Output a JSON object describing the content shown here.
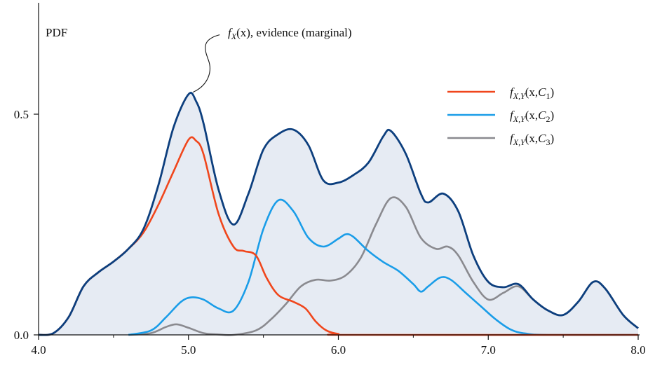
{
  "chart_data": {
    "type": "line",
    "ylabel": "PDF",
    "xlim": [
      4.0,
      8.0
    ],
    "ylim": [
      0.0,
      0.7
    ],
    "x_ticks": [
      {
        "value": 4.0,
        "label": "4.0"
      },
      {
        "value": 5.0,
        "label": "5.0"
      },
      {
        "value": 6.0,
        "label": "6.0"
      },
      {
        "value": 7.0,
        "label": "7.0"
      },
      {
        "value": 8.0,
        "label": "8.0"
      }
    ],
    "y_ticks": [
      {
        "value": 0.0,
        "label": "0.0"
      },
      {
        "value": 0.5,
        "label": "0.5"
      }
    ],
    "annotation": {
      "func": "f",
      "sub": "X",
      "args": "(x)",
      "text": ", evidence (marginal)",
      "point_x": 5.03
    },
    "legend": {
      "position": "top-right",
      "entries": [
        {
          "func": "f",
          "sub": "X,Y",
          "open": "(x,",
          "var": "C",
          "index": "1",
          "close": ")",
          "color": "#f0461c"
        },
        {
          "func": "f",
          "sub": "X,Y",
          "open": "(x,",
          "var": "C",
          "index": "2",
          "close": ")",
          "color": "#1a9de8"
        },
        {
          "func": "f",
          "sub": "X,Y",
          "open": "(x,",
          "var": "C",
          "index": "3",
          "close": ")",
          "color": "#8a8a8f"
        }
      ]
    },
    "series": [
      {
        "color": "#f0461c",
        "points": [
          [
            4.0,
            0.0
          ],
          [
            4.1,
            0.004
          ],
          [
            4.2,
            0.04
          ],
          [
            4.3,
            0.11
          ],
          [
            4.4,
            0.142
          ],
          [
            4.5,
            0.166
          ],
          [
            4.6,
            0.195
          ],
          [
            4.7,
            0.232
          ],
          [
            4.8,
            0.295
          ],
          [
            4.9,
            0.37
          ],
          [
            5.0,
            0.442
          ],
          [
            5.05,
            0.44
          ],
          [
            5.1,
            0.41
          ],
          [
            5.2,
            0.275
          ],
          [
            5.3,
            0.2
          ],
          [
            5.37,
            0.19
          ],
          [
            5.45,
            0.18
          ],
          [
            5.52,
            0.13
          ],
          [
            5.6,
            0.09
          ],
          [
            5.7,
            0.075
          ],
          [
            5.78,
            0.06
          ],
          [
            5.85,
            0.03
          ],
          [
            5.92,
            0.01
          ],
          [
            6.0,
            0.002
          ],
          [
            6.1,
            0.0
          ],
          [
            8.0,
            0.0
          ]
        ]
      },
      {
        "color": "#1a9de8",
        "points": [
          [
            4.6,
            0.0
          ],
          [
            4.75,
            0.01
          ],
          [
            4.85,
            0.04
          ],
          [
            4.95,
            0.075
          ],
          [
            5.02,
            0.085
          ],
          [
            5.1,
            0.08
          ],
          [
            5.2,
            0.06
          ],
          [
            5.3,
            0.055
          ],
          [
            5.4,
            0.12
          ],
          [
            5.5,
            0.24
          ],
          [
            5.6,
            0.305
          ],
          [
            5.7,
            0.28
          ],
          [
            5.8,
            0.22
          ],
          [
            5.9,
            0.2
          ],
          [
            6.0,
            0.218
          ],
          [
            6.05,
            0.228
          ],
          [
            6.1,
            0.222
          ],
          [
            6.2,
            0.19
          ],
          [
            6.3,
            0.165
          ],
          [
            6.4,
            0.145
          ],
          [
            6.5,
            0.115
          ],
          [
            6.55,
            0.098
          ],
          [
            6.6,
            0.11
          ],
          [
            6.68,
            0.13
          ],
          [
            6.75,
            0.125
          ],
          [
            6.85,
            0.095
          ],
          [
            6.95,
            0.065
          ],
          [
            7.05,
            0.035
          ],
          [
            7.15,
            0.012
          ],
          [
            7.25,
            0.003
          ],
          [
            7.4,
            0.0
          ],
          [
            8.0,
            0.0
          ]
        ]
      },
      {
        "color": "#8a8a8f",
        "points": [
          [
            4.6,
            0.0
          ],
          [
            4.75,
            0.004
          ],
          [
            4.85,
            0.018
          ],
          [
            4.92,
            0.024
          ],
          [
            5.0,
            0.016
          ],
          [
            5.1,
            0.004
          ],
          [
            5.2,
            0.001
          ],
          [
            5.3,
            0.0
          ],
          [
            5.45,
            0.01
          ],
          [
            5.55,
            0.035
          ],
          [
            5.65,
            0.07
          ],
          [
            5.75,
            0.11
          ],
          [
            5.85,
            0.125
          ],
          [
            5.95,
            0.123
          ],
          [
            6.05,
            0.135
          ],
          [
            6.15,
            0.175
          ],
          [
            6.25,
            0.25
          ],
          [
            6.35,
            0.31
          ],
          [
            6.45,
            0.29
          ],
          [
            6.55,
            0.22
          ],
          [
            6.65,
            0.195
          ],
          [
            6.73,
            0.2
          ],
          [
            6.8,
            0.18
          ],
          [
            6.9,
            0.12
          ],
          [
            7.0,
            0.08
          ],
          [
            7.1,
            0.095
          ],
          [
            7.2,
            0.11
          ],
          [
            7.3,
            0.08
          ],
          [
            7.4,
            0.055
          ],
          [
            7.5,
            0.045
          ],
          [
            7.6,
            0.075
          ],
          [
            7.7,
            0.12
          ],
          [
            7.78,
            0.105
          ],
          [
            7.9,
            0.045
          ],
          [
            8.0,
            0.015
          ]
        ]
      },
      {
        "color": "#0d3f7e",
        "fill": "#e6ebf3",
        "points": [
          [
            4.0,
            0.0
          ],
          [
            4.1,
            0.004
          ],
          [
            4.2,
            0.04
          ],
          [
            4.3,
            0.11
          ],
          [
            4.4,
            0.142
          ],
          [
            4.5,
            0.166
          ],
          [
            4.6,
            0.195
          ],
          [
            4.7,
            0.24
          ],
          [
            4.8,
            0.34
          ],
          [
            4.9,
            0.47
          ],
          [
            5.0,
            0.545
          ],
          [
            5.05,
            0.53
          ],
          [
            5.1,
            0.48
          ],
          [
            5.2,
            0.33
          ],
          [
            5.3,
            0.25
          ],
          [
            5.4,
            0.32
          ],
          [
            5.5,
            0.42
          ],
          [
            5.6,
            0.455
          ],
          [
            5.7,
            0.465
          ],
          [
            5.8,
            0.43
          ],
          [
            5.9,
            0.35
          ],
          [
            6.0,
            0.345
          ],
          [
            6.1,
            0.362
          ],
          [
            6.2,
            0.39
          ],
          [
            6.3,
            0.45
          ],
          [
            6.35,
            0.462
          ],
          [
            6.45,
            0.41
          ],
          [
            6.55,
            0.32
          ],
          [
            6.6,
            0.3
          ],
          [
            6.7,
            0.32
          ],
          [
            6.8,
            0.28
          ],
          [
            6.9,
            0.18
          ],
          [
            7.0,
            0.12
          ],
          [
            7.1,
            0.108
          ],
          [
            7.2,
            0.115
          ],
          [
            7.3,
            0.08
          ],
          [
            7.4,
            0.055
          ],
          [
            7.5,
            0.045
          ],
          [
            7.6,
            0.075
          ],
          [
            7.7,
            0.12
          ],
          [
            7.78,
            0.105
          ],
          [
            7.9,
            0.045
          ],
          [
            8.0,
            0.015
          ]
        ]
      }
    ]
  }
}
